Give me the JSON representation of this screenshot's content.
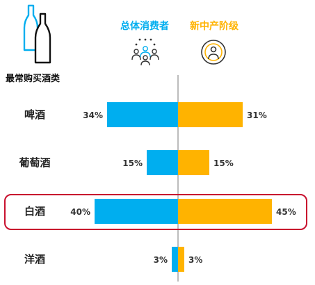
{
  "subtitle": "最常购买酒类",
  "legend": {
    "left": "总体消费者",
    "right": "新中产阶级"
  },
  "colors": {
    "left": "#00aeef",
    "right": "#ffb300",
    "highlight": "#c8102e",
    "axis": "#a6a6a6"
  },
  "icons": {
    "bottles": "wine-bottles-icon",
    "crowd": "crowd-icon",
    "person": "person-target-icon"
  },
  "chart_data": {
    "type": "bar",
    "orientation": "diverging-horizontal",
    "categories": [
      "啤酒",
      "葡萄酒",
      "白酒",
      "洋酒"
    ],
    "series": [
      {
        "name": "总体消费者",
        "values": [
          34,
          15,
          40,
          3
        ],
        "labels": [
          "34%",
          "15%",
          "40%",
          "3%"
        ]
      },
      {
        "name": "新中产阶级",
        "values": [
          31,
          15,
          45,
          3
        ],
        "labels": [
          "31%",
          "15%",
          "45%",
          "3%"
        ]
      }
    ],
    "highlight_category": "白酒",
    "unit": "%"
  }
}
